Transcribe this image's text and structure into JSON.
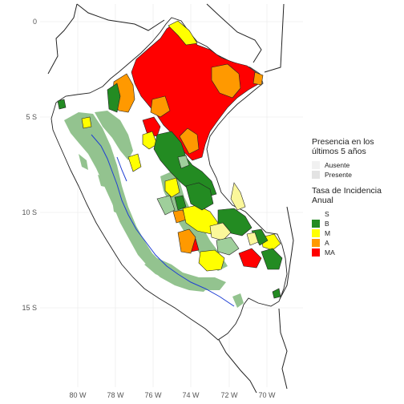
{
  "axes": {
    "y_ticks": [
      "0",
      "5 S",
      "10 S",
      "15 S"
    ],
    "x_ticks": [
      "80 W",
      "78 W",
      "76 W",
      "74 W",
      "72 W",
      "70 W"
    ]
  },
  "legend_presence": {
    "title_lines": [
      "Presencia en los",
      "últimos 5 años"
    ],
    "items": [
      {
        "label": "Ausente",
        "color": "#f1f1f1"
      },
      {
        "label": "Presente",
        "color": "#e3e3e3"
      }
    ]
  },
  "legend_incidence": {
    "title_lines": [
      "Tasa de Incidencia",
      "Anual"
    ],
    "items": [
      {
        "label": "S",
        "color": "#ffffff"
      },
      {
        "label": "B",
        "color": "#238b22"
      },
      {
        "label": "M",
        "color": "#ffff00"
      },
      {
        "label": "A",
        "color": "#ff9900"
      },
      {
        "label": "MA",
        "color": "#ff0000"
      }
    ]
  },
  "colors": {
    "grid": "#e8e8e8",
    "country_fill": "#ffffff",
    "presence_green": "#93c38f",
    "very_high": "#ff0000",
    "high": "#ff9900",
    "medium": "#ffff00",
    "low": "#238b22",
    "light_yellow": "#fbf79a",
    "light_green": "#9fcf9b",
    "river": "#1f3fd4",
    "border": "#222222"
  }
}
